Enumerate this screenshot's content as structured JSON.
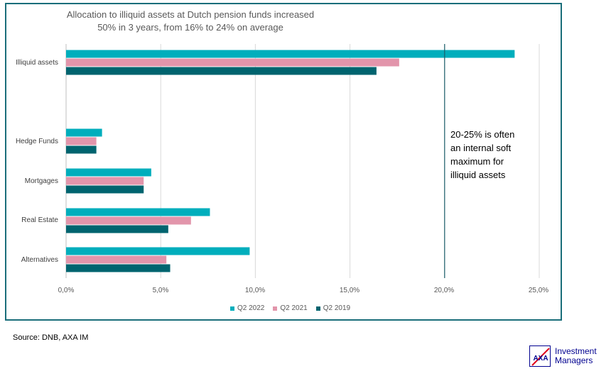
{
  "title_line1": "Allocation to illiquid assets at Dutch pension funds increased",
  "title_line2": "50% in 3 years, from 16% to 24% on average",
  "annotation": [
    "20-25% is often",
    "an internal soft",
    "maximum for",
    "illiquid assets"
  ],
  "source": "Source: DNB, AXA IM",
  "logo": {
    "brand": "AXA",
    "line1": "Investment",
    "line2": "Managers"
  },
  "colors": {
    "q2_2022": "#00aebc",
    "q2_2021": "#e295ab",
    "q2_2019": "#00646f",
    "frame": "#1a6e7a",
    "refline": "#1a5e6a"
  },
  "chart_data": {
    "type": "bar",
    "orientation": "horizontal",
    "title": "Allocation to illiquid assets at Dutch pension funds increased 50% in 3 years, from 16% to 24% on average",
    "categories": [
      "Illiquid assets",
      "Hedge Funds",
      "Mortgages",
      "Real Estate",
      "Alternatives"
    ],
    "series": [
      {
        "name": "Q2 2022",
        "values": [
          23.7,
          1.9,
          4.5,
          7.6,
          9.7
        ]
      },
      {
        "name": "Q2 2021",
        "values": [
          17.6,
          1.6,
          4.1,
          6.6,
          5.3
        ]
      },
      {
        "name": "Q2 2019",
        "values": [
          16.4,
          1.6,
          4.1,
          5.4,
          5.5
        ]
      }
    ],
    "xlim": [
      0,
      25
    ],
    "x_ticks": [
      "0,0%",
      "5,0%",
      "10,0%",
      "15,0%",
      "20,0%",
      "25,0%"
    ],
    "grid": true,
    "legend_position": "bottom",
    "reference_line": 20,
    "xlabel": "",
    "ylabel": ""
  }
}
